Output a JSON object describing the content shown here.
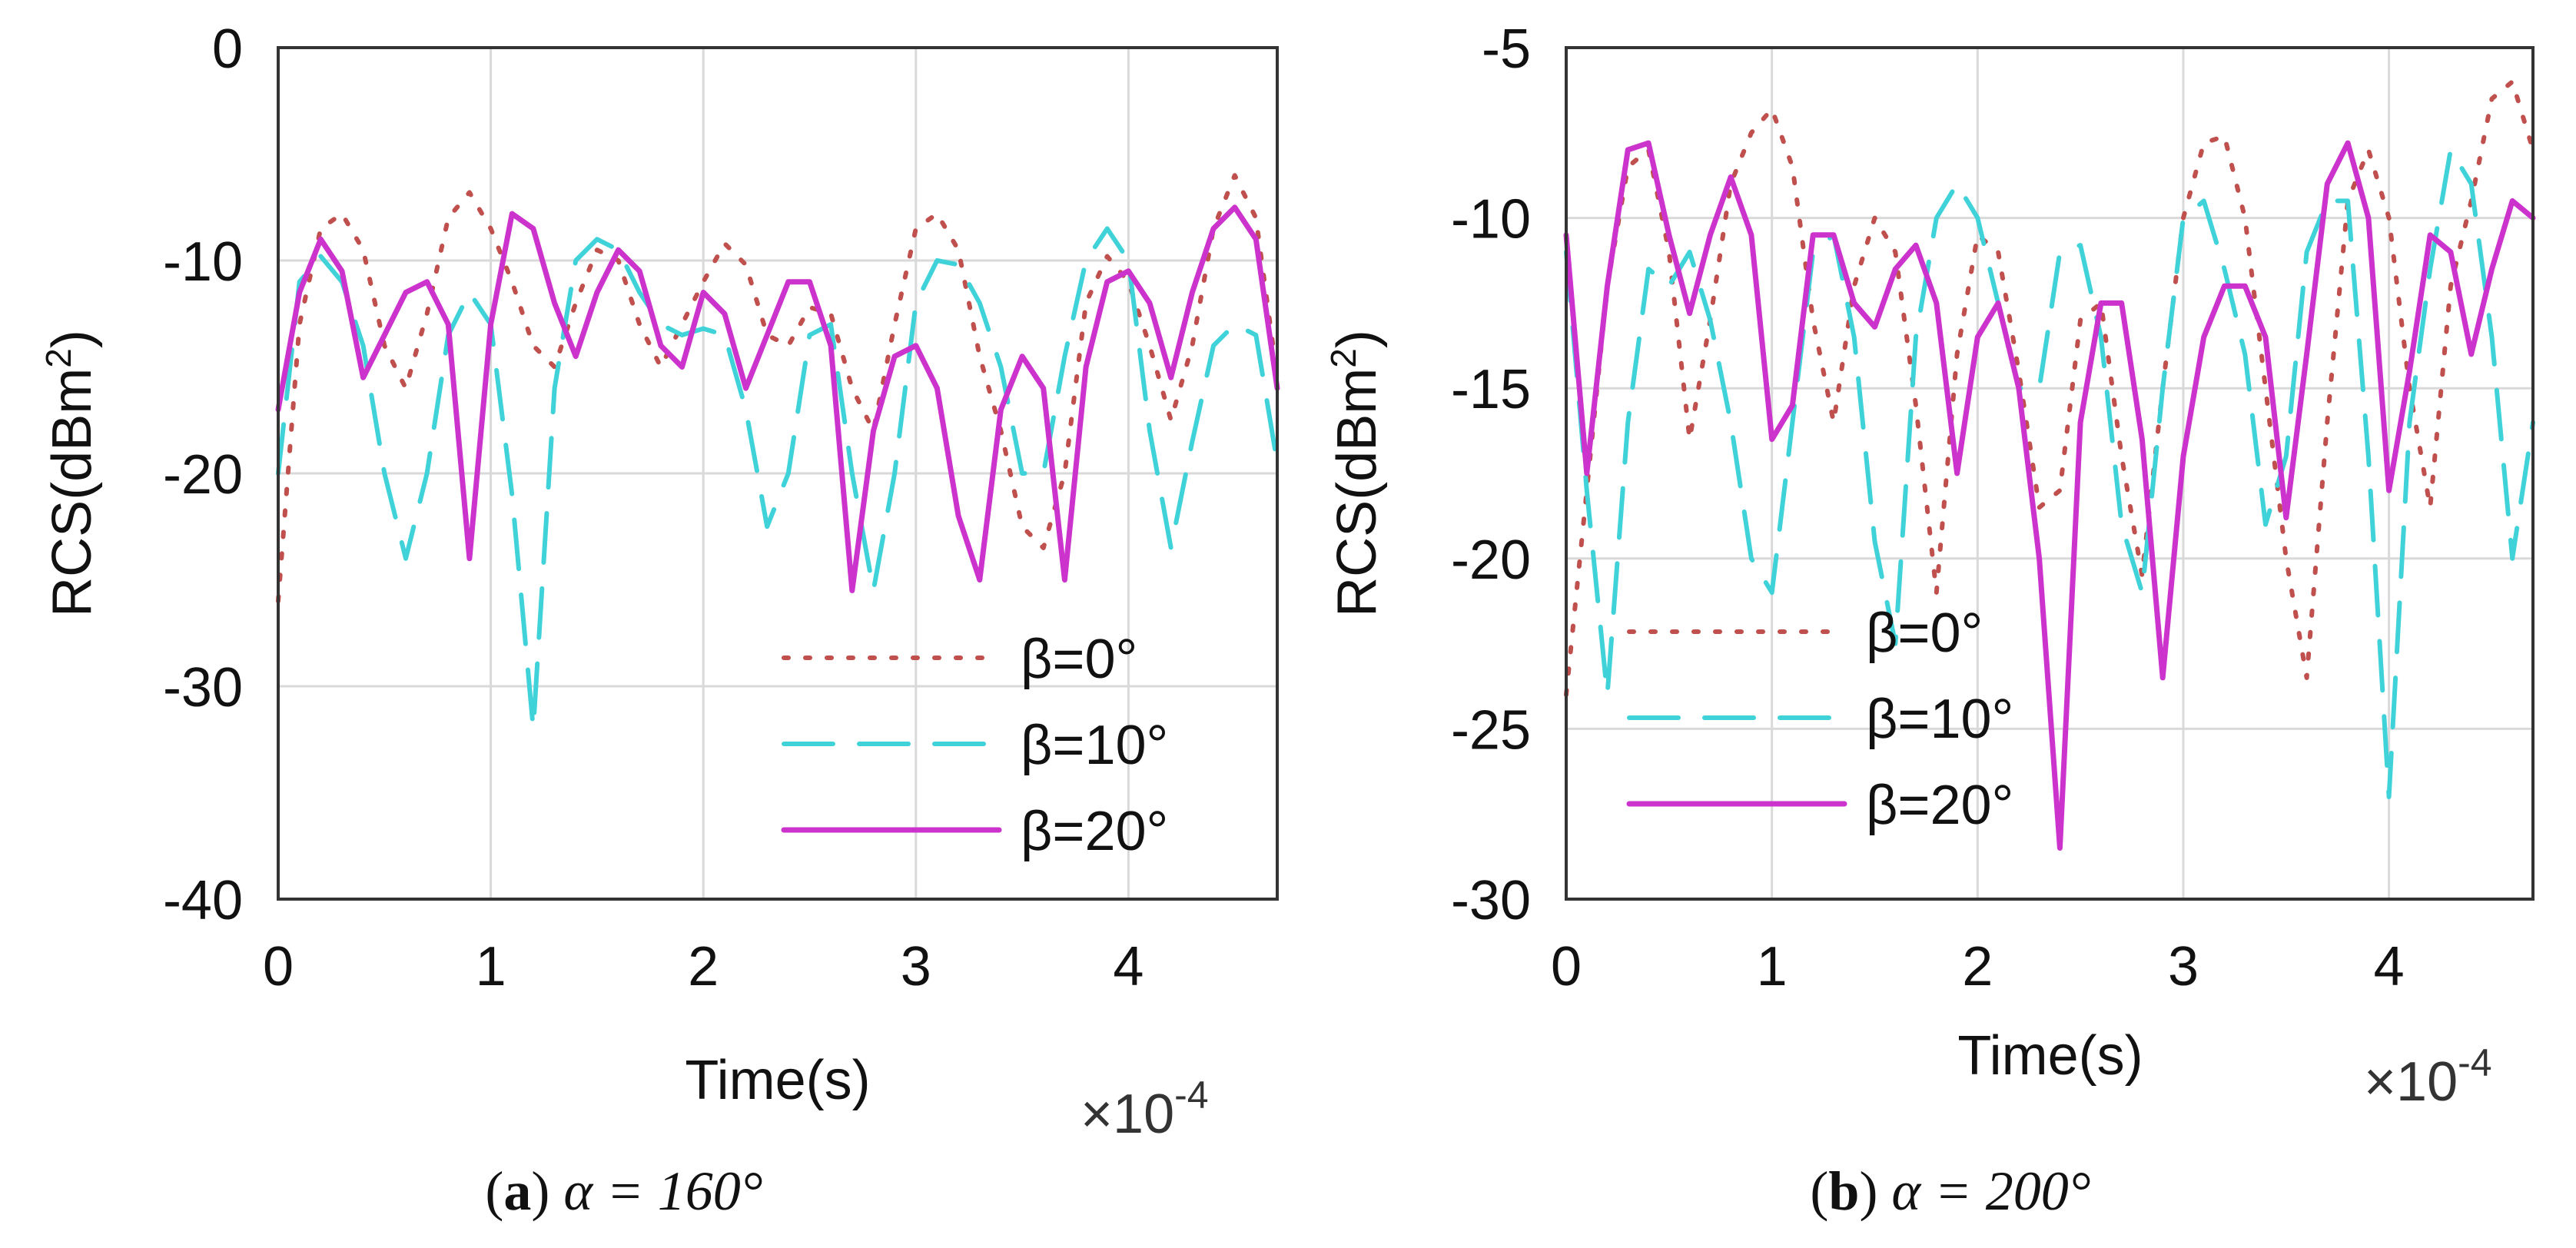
{
  "chart_data": [
    {
      "type": "line",
      "panel_label": "a",
      "caption": "α = 160°",
      "xlabel": "Time(s)",
      "ylabel": "RCS(dBm",
      "ylabel_sup": "2",
      "ylabel_close": ")",
      "xlim": [
        0,
        4.7
      ],
      "ylim": [
        -40,
        0
      ],
      "xticks": [
        0,
        1,
        2,
        3,
        4
      ],
      "yticks": [
        0,
        -10,
        -20,
        -30,
        -40
      ],
      "x_multiplier_base": "×10",
      "x_multiplier_exp": "-4",
      "grid": true,
      "legend_position": "lower-right",
      "x": [
        0.0,
        0.1,
        0.2,
        0.3,
        0.4,
        0.5,
        0.6,
        0.7,
        0.8,
        0.9,
        1.0,
        1.1,
        1.2,
        1.3,
        1.4,
        1.5,
        1.6,
        1.7,
        1.8,
        1.9,
        2.0,
        2.1,
        2.2,
        2.3,
        2.4,
        2.5,
        2.6,
        2.7,
        2.8,
        2.9,
        3.0,
        3.1,
        3.2,
        3.3,
        3.4,
        3.5,
        3.6,
        3.7,
        3.8,
        3.9,
        4.0,
        4.1,
        4.2,
        4.3,
        4.4,
        4.5,
        4.6,
        4.7
      ],
      "series": [
        {
          "name": "β=0°",
          "style": "dotted",
          "color": "#c0504d",
          "values": [
            -26,
            -13,
            -8.5,
            -7.8,
            -9.5,
            -14,
            -16,
            -12.5,
            -8,
            -6.8,
            -8.5,
            -11,
            -14,
            -15,
            -12,
            -9.5,
            -10,
            -13,
            -15,
            -13,
            -11,
            -9.2,
            -10.2,
            -13.5,
            -14,
            -12.2,
            -12.5,
            -16,
            -18,
            -13,
            -8.5,
            -7.8,
            -9.5,
            -14.5,
            -18,
            -22.5,
            -23.5,
            -20,
            -12,
            -9.8,
            -11,
            -14,
            -17.5,
            -14,
            -8.5,
            -6,
            -8,
            -15.5
          ]
        },
        {
          "name": "β=10°",
          "style": "dashed",
          "color": "#3fd3d9",
          "values": [
            -20,
            -11,
            -9.8,
            -11,
            -14,
            -20,
            -24,
            -20,
            -13.5,
            -11.5,
            -13,
            -21,
            -32,
            -16,
            -10,
            -9,
            -9.5,
            -11.5,
            -13,
            -13.5,
            -13.2,
            -13.5,
            -17,
            -22.5,
            -20,
            -13.5,
            -13,
            -20,
            -25.5,
            -20,
            -12,
            -10,
            -10.2,
            -12,
            -15,
            -20,
            -20,
            -14.5,
            -10,
            -8.5,
            -10,
            -18,
            -23.5,
            -18.5,
            -14,
            -13,
            -13.5,
            -19.5
          ]
        },
        {
          "name": "β=20°",
          "style": "solid",
          "color": "#cc33cc",
          "values": [
            -17,
            -11.5,
            -9,
            -10.5,
            -15.5,
            -13.5,
            -11.5,
            -11,
            -13,
            -24,
            -13,
            -7.8,
            -8.5,
            -12,
            -14.5,
            -11.5,
            -9.5,
            -10.5,
            -14,
            -15,
            -11.5,
            -12.5,
            -16,
            -13.5,
            -11,
            -11,
            -14,
            -25.5,
            -18,
            -14.5,
            -14,
            -16,
            -22,
            -25,
            -17,
            -14.5,
            -16,
            -25,
            -15,
            -11,
            -10.5,
            -12,
            -15.5,
            -11.5,
            -8.5,
            -7.5,
            -9,
            -16
          ]
        }
      ]
    },
    {
      "type": "line",
      "panel_label": "b",
      "caption": "α = 200°",
      "xlabel": "Time(s)",
      "ylabel": "RCS(dBm",
      "ylabel_sup": "2",
      "ylabel_close": ")",
      "xlim": [
        0,
        4.7
      ],
      "ylim": [
        -30,
        -5
      ],
      "xticks": [
        0,
        1,
        2,
        3,
        4
      ],
      "yticks": [
        -5,
        -10,
        -15,
        -20,
        -25,
        -30
      ],
      "x_multiplier_base": "×10",
      "x_multiplier_exp": "-4",
      "grid": true,
      "legend_position": "lower-left",
      "x": [
        0.0,
        0.1,
        0.2,
        0.3,
        0.4,
        0.5,
        0.6,
        0.7,
        0.8,
        0.9,
        1.0,
        1.1,
        1.2,
        1.3,
        1.4,
        1.5,
        1.6,
        1.7,
        1.8,
        1.9,
        2.0,
        2.1,
        2.2,
        2.3,
        2.4,
        2.5,
        2.6,
        2.7,
        2.8,
        2.9,
        3.0,
        3.1,
        3.2,
        3.3,
        3.4,
        3.5,
        3.6,
        3.7,
        3.8,
        3.9,
        4.0,
        4.1,
        4.2,
        4.3,
        4.4,
        4.5,
        4.6,
        4.7
      ],
      "series": [
        {
          "name": "β=0°",
          "style": "dotted",
          "color": "#c0504d",
          "values": [
            -24,
            -18,
            -12,
            -8.5,
            -8,
            -11,
            -16.5,
            -13,
            -9,
            -7.5,
            -6.8,
            -8.5,
            -13,
            -16,
            -12,
            -10,
            -11,
            -15.5,
            -21,
            -14,
            -10.5,
            -11,
            -14.5,
            -18.5,
            -18,
            -13,
            -12.5,
            -17,
            -20.5,
            -15,
            -10,
            -7.8,
            -7.6,
            -10,
            -15,
            -20,
            -23.5,
            -16,
            -9.5,
            -8,
            -10,
            -15,
            -18.5,
            -12,
            -9.5,
            -6.5,
            -6,
            -8
          ]
        },
        {
          "name": "β=10°",
          "style": "dashed",
          "color": "#3fd3d9",
          "values": [
            -11,
            -18,
            -24,
            -16,
            -11.5,
            -12,
            -11,
            -13,
            -16,
            -20,
            -21,
            -16,
            -11,
            -10.5,
            -13.5,
            -19.5,
            -22.5,
            -13.5,
            -10,
            -9,
            -10,
            -12.5,
            -15,
            -15,
            -11,
            -10.8,
            -13.5,
            -19,
            -21,
            -15,
            -10,
            -9.5,
            -11.5,
            -14,
            -19,
            -17,
            -11,
            -9.5,
            -9.5,
            -17,
            -27,
            -16,
            -11.5,
            -8,
            -9,
            -13.5,
            -20,
            -16
          ]
        },
        {
          "name": "β=20°",
          "style": "solid",
          "color": "#cc33cc",
          "values": [
            -10.5,
            -17.5,
            -12,
            -8,
            -7.8,
            -10.5,
            -12.8,
            -10.5,
            -8.8,
            -10.5,
            -16.5,
            -15.5,
            -10.5,
            -10.5,
            -12.5,
            -13.2,
            -11.5,
            -10.8,
            -12.5,
            -17.5,
            -13.5,
            -12.5,
            -15,
            -20,
            -28.5,
            -16,
            -12.5,
            -12.5,
            -16.5,
            -23.5,
            -17,
            -13.5,
            -12,
            -12,
            -13.5,
            -18.8,
            -14,
            -9,
            -7.8,
            -10,
            -18,
            -14.5,
            -10.5,
            -11,
            -14,
            -11.5,
            -9.5,
            -10
          ]
        }
      ]
    }
  ]
}
